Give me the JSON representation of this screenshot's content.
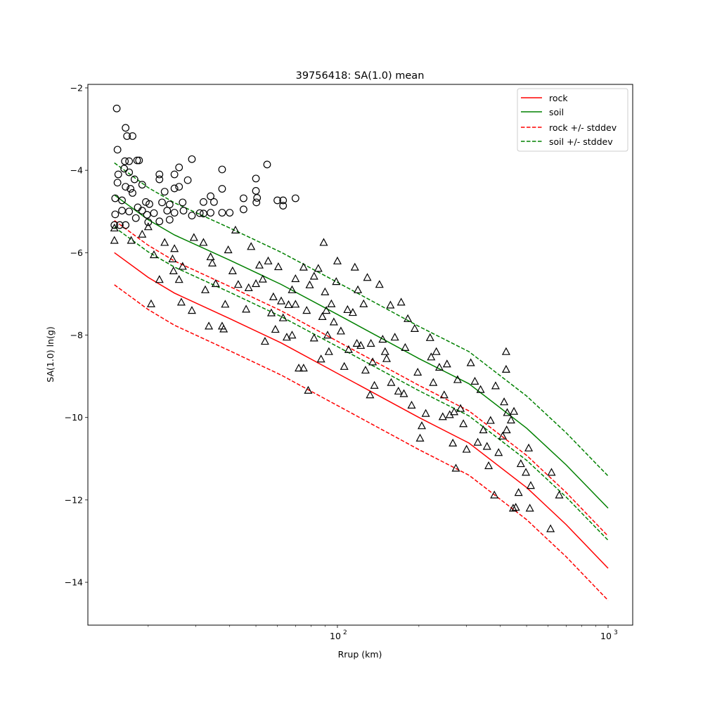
{
  "chart_data": {
    "type": "scatter",
    "title": "39756418: SA(1.0) mean",
    "xlabel": "Rrup (km)",
    "ylabel": "SA(1.0) ln(g)",
    "xscale": "log",
    "xlim": [
      11.97,
      1233
    ],
    "ylim": [
      -15.04,
      -1.915
    ],
    "yticks": [
      -14,
      -12,
      -10,
      -8,
      -6,
      -4,
      -2
    ],
    "ytick_labels": [
      "−14",
      "−12",
      "−10",
      "−8",
      "−6",
      "−4",
      "−2"
    ],
    "xticks_major": [
      100,
      1000
    ],
    "xtick_labels": [
      {
        "base": "10",
        "exp": "2"
      },
      {
        "base": "10",
        "exp": "3"
      }
    ],
    "xticks_minor": [
      20,
      30,
      40,
      50,
      60,
      70,
      80,
      90,
      200,
      300,
      400,
      500,
      600,
      700,
      800,
      900
    ],
    "grid": false,
    "legend": {
      "placement": "top-right",
      "entries": [
        {
          "label": "rock",
          "color": "#ff0000",
          "style": "solid"
        },
        {
          "label": "soil",
          "color": "#008000",
          "style": "solid"
        },
        {
          "label": "rock +/- stddev",
          "color": "#ff0000",
          "style": "dashed"
        },
        {
          "label": "soil +/- stddev",
          "color": "#008000",
          "style": "dashed"
        }
      ]
    },
    "curves": {
      "R": [
        15,
        20,
        25,
        40,
        62,
        100,
        200,
        306,
        500,
        700,
        1000
      ],
      "rock_mean": [
        -6.0,
        -6.6,
        -6.98,
        -7.6,
        -8.19,
        -8.93,
        -10.0,
        -10.62,
        -11.7,
        -12.6,
        -13.66
      ],
      "soil_mean": [
        -4.6,
        -5.2,
        -5.57,
        -6.18,
        -6.77,
        -7.5,
        -8.57,
        -9.18,
        -10.26,
        -11.15,
        -12.2
      ],
      "stddev": 0.78
    },
    "series": [
      {
        "name": "circles",
        "marker": "circle",
        "points": [
          [
            15.3,
            -2.5
          ],
          [
            16.5,
            -2.97
          ],
          [
            16.7,
            -3.17
          ],
          [
            17.5,
            -3.17
          ],
          [
            15.4,
            -3.5
          ],
          [
            15.5,
            -4.1
          ],
          [
            18.2,
            -3.76
          ],
          [
            18.5,
            -3.76
          ],
          [
            16.4,
            -3.78
          ],
          [
            17,
            -3.78
          ],
          [
            29,
            -3.73
          ],
          [
            37.5,
            -3.98
          ],
          [
            55,
            -3.86
          ],
          [
            50,
            -4.2
          ],
          [
            50,
            -4.5
          ],
          [
            50.5,
            -4.67
          ],
          [
            50.2,
            -4.78
          ],
          [
            45,
            -4.95
          ],
          [
            45,
            -4.68
          ],
          [
            70,
            -4.68
          ],
          [
            63,
            -4.73
          ],
          [
            63,
            -4.86
          ],
          [
            60,
            -4.73
          ],
          [
            37.5,
            -4.45
          ],
          [
            37.5,
            -5.03
          ],
          [
            34,
            -5.03
          ],
          [
            32,
            -5.05
          ],
          [
            32,
            -4.77
          ],
          [
            35,
            -4.77
          ],
          [
            34,
            -4.63
          ],
          [
            40,
            -5.03
          ],
          [
            26,
            -4.4
          ],
          [
            26,
            -3.93
          ],
          [
            25,
            -4.1
          ],
          [
            22,
            -4.1
          ],
          [
            22,
            -4.22
          ],
          [
            28,
            -4.24
          ],
          [
            25,
            -4.44
          ],
          [
            23,
            -4.52
          ],
          [
            26.8,
            -4.78
          ],
          [
            24,
            -4.83
          ],
          [
            23.5,
            -4.98
          ],
          [
            25,
            -5.03
          ],
          [
            27,
            -4.98
          ],
          [
            29,
            -5.1
          ],
          [
            31,
            -5.04
          ],
          [
            19,
            -4.35
          ],
          [
            19.6,
            -4.77
          ],
          [
            19.8,
            -5.08
          ],
          [
            21,
            -5.04
          ],
          [
            22,
            -5.24
          ],
          [
            24,
            -5.2
          ],
          [
            16,
            -4.98
          ],
          [
            16.5,
            -5.33
          ],
          [
            15.7,
            -5.33
          ],
          [
            17,
            -5.0
          ],
          [
            15.1,
            -4.68
          ],
          [
            15.4,
            -4.3
          ],
          [
            17,
            -4.05
          ],
          [
            16.5,
            -4.4
          ],
          [
            17.5,
            -4.55
          ],
          [
            18.3,
            -4.9
          ],
          [
            15,
            -5.33
          ],
          [
            15.1,
            -5.07
          ],
          [
            16,
            -4.73
          ],
          [
            18,
            -5.16
          ],
          [
            19,
            -4.98
          ],
          [
            20,
            -5.26
          ],
          [
            20.2,
            -4.82
          ],
          [
            22.5,
            -4.78
          ],
          [
            17.8,
            -4.22
          ],
          [
            16.3,
            -3.96
          ],
          [
            17.2,
            -4.45
          ]
        ]
      },
      {
        "name": "triangles",
        "marker": "triangle",
        "points": [
          [
            15,
            -5.7
          ],
          [
            15,
            -5.4
          ],
          [
            17.3,
            -5.7
          ],
          [
            19,
            -5.55
          ],
          [
            20,
            -5.37
          ],
          [
            23,
            -5.75
          ],
          [
            22,
            -6.65
          ],
          [
            21,
            -6.05
          ],
          [
            20.5,
            -7.24
          ],
          [
            24.6,
            -6.15
          ],
          [
            24.8,
            -6.44
          ],
          [
            25,
            -5.9
          ],
          [
            26,
            -6.65
          ],
          [
            26.5,
            -7.2
          ],
          [
            26.8,
            -6.33
          ],
          [
            29,
            -7.4
          ],
          [
            29.5,
            -5.63
          ],
          [
            32,
            -5.75
          ],
          [
            32.5,
            -6.9
          ],
          [
            34,
            -6.1
          ],
          [
            34.5,
            -6.25
          ],
          [
            35.5,
            -6.75
          ],
          [
            37.5,
            -7.78
          ],
          [
            38,
            -7.85
          ],
          [
            38.5,
            -7.25
          ],
          [
            42,
            -5.45
          ],
          [
            39.5,
            -5.93
          ],
          [
            41,
            -6.44
          ],
          [
            43,
            -6.77
          ],
          [
            46,
            -7.37
          ],
          [
            47,
            -6.85
          ],
          [
            50,
            -6.75
          ],
          [
            51.5,
            -6.3
          ],
          [
            53,
            -6.64
          ],
          [
            54,
            -8.15
          ],
          [
            48,
            -5.85
          ],
          [
            55.5,
            -6.2
          ],
          [
            57,
            -7.46
          ],
          [
            58,
            -7.07
          ],
          [
            59,
            -7.86
          ],
          [
            60.5,
            -6.34
          ],
          [
            62,
            -7.17
          ],
          [
            63,
            -7.58
          ],
          [
            66,
            -7.26
          ],
          [
            68,
            -6.9
          ],
          [
            70,
            -6.63
          ],
          [
            72,
            -8.8
          ],
          [
            75,
            -8.8
          ],
          [
            75,
            -6.35
          ],
          [
            77,
            -7.4
          ],
          [
            79,
            -6.78
          ],
          [
            82,
            -6.57
          ],
          [
            85,
            -6.38
          ],
          [
            82,
            -8.07
          ],
          [
            87,
            -8.58
          ],
          [
            89,
            -5.75
          ],
          [
            90,
            -6.95
          ],
          [
            91,
            -7.4
          ],
          [
            92,
            -8.0
          ],
          [
            93,
            -8.4
          ],
          [
            95,
            -7.24
          ],
          [
            97,
            -7.68
          ],
          [
            99,
            -6.7
          ],
          [
            100,
            -6.2
          ],
          [
            103,
            -7.9
          ],
          [
            106,
            -8.76
          ],
          [
            109,
            -7.38
          ],
          [
            114,
            -7.45
          ],
          [
            116,
            -6.35
          ],
          [
            119,
            -6.9
          ],
          [
            122,
            -8.25
          ],
          [
            125,
            -7.24
          ],
          [
            127,
            -8.85
          ],
          [
            129,
            -6.6
          ],
          [
            132,
            -9.45
          ],
          [
            133,
            -8.2
          ],
          [
            137,
            -9.22
          ],
          [
            143,
            -6.77
          ],
          [
            147,
            -8.1
          ],
          [
            152,
            -8.57
          ],
          [
            157,
            -7.27
          ],
          [
            158,
            -9.15
          ],
          [
            163,
            -8.05
          ],
          [
            168,
            -9.36
          ],
          [
            172,
            -7.2
          ],
          [
            176,
            -9.42
          ],
          [
            182,
            -7.6
          ],
          [
            188,
            -9.7
          ],
          [
            193,
            -7.84
          ],
          [
            198,
            -8.9
          ],
          [
            202,
            -10.5
          ],
          [
            205,
            -10.2
          ],
          [
            212,
            -9.9
          ],
          [
            220,
            -8.06
          ],
          [
            222,
            -8.53
          ],
          [
            226,
            -9.15
          ],
          [
            232,
            -8.4
          ],
          [
            238,
            -8.78
          ],
          [
            245,
            -9.98
          ],
          [
            248,
            -9.45
          ],
          [
            254,
            -8.7
          ],
          [
            260,
            -9.93
          ],
          [
            267,
            -10.62
          ],
          [
            270,
            -9.86
          ],
          [
            274,
            -11.23
          ],
          [
            278,
            -9.08
          ],
          [
            285,
            -9.78
          ],
          [
            292,
            -10.15
          ],
          [
            300,
            -10.77
          ],
          [
            311,
            -8.67
          ],
          [
            322,
            -9.12
          ],
          [
            330,
            -10.6
          ],
          [
            338,
            -9.32
          ],
          [
            346,
            -10.3
          ],
          [
            357,
            -10.7
          ],
          [
            362,
            -11.17
          ],
          [
            368,
            -10.07
          ],
          [
            380,
            -11.88
          ],
          [
            384,
            -9.23
          ],
          [
            394,
            -10.85
          ],
          [
            408,
            -10.45
          ],
          [
            420,
            -8.4
          ],
          [
            420,
            -8.83
          ],
          [
            413,
            -9.62
          ],
          [
            422,
            -10.3
          ],
          [
            424,
            -9.88
          ],
          [
            446,
            -12.2
          ],
          [
            456,
            -12.18
          ],
          [
            467,
            -11.82
          ],
          [
            476,
            -11.12
          ],
          [
            497,
            -11.33
          ],
          [
            509,
            -10.74
          ],
          [
            518,
            -11.65
          ],
          [
            613,
            -12.7
          ],
          [
            660,
            -11.88
          ],
          [
            618,
            -11.33
          ],
          [
            514,
            -12.2
          ],
          [
            438,
            -10.06
          ],
          [
            449,
            -9.85
          ],
          [
            78,
            -9.34
          ],
          [
            33.5,
            -7.78
          ],
          [
            65,
            -8.05
          ],
          [
            68,
            -8.0
          ],
          [
            70,
            -7.25
          ],
          [
            88,
            -7.55
          ],
          [
            110,
            -8.35
          ],
          [
            118,
            -8.2
          ],
          [
            135,
            -8.65
          ],
          [
            150,
            -8.4
          ],
          [
            178,
            -8.3
          ]
        ]
      }
    ]
  }
}
